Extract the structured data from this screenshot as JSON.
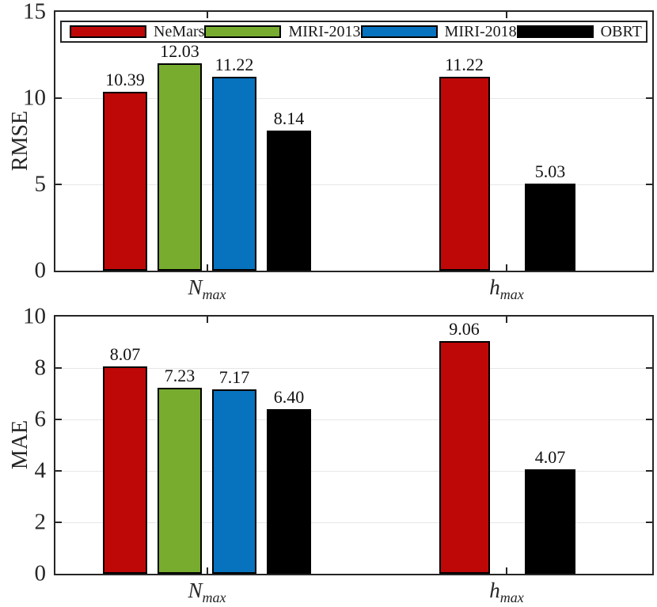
{
  "styles": {
    "axis_color": "#262626",
    "grid_color": "#e7e7e7",
    "background": "#ffffff",
    "bar_edge_color": "#000000"
  },
  "chart_data": [
    {
      "type": "bar",
      "title": "",
      "xlabel": "",
      "ylabel": "RMSE",
      "ylim": [
        0,
        15
      ],
      "yticks": [
        0,
        5,
        10,
        15
      ],
      "grid": true,
      "value_labels": true,
      "categories": [
        {
          "base": "N",
          "sub": "max"
        },
        {
          "base": "h",
          "sub": "max"
        }
      ],
      "series": [
        {
          "name": "NeMars",
          "color": "#be0808",
          "values": [
            10.39,
            11.22
          ]
        },
        {
          "name": "MIRI-2013",
          "color": "#77ac2f",
          "values": [
            12.03,
            null
          ]
        },
        {
          "name": "MIRI-2018",
          "color": "#0772bd",
          "values": [
            11.22,
            null
          ]
        },
        {
          "name": "OBRT",
          "color": "#000000",
          "values": [
            8.14,
            5.03
          ]
        }
      ],
      "legend": {
        "position": "top",
        "entries": [
          "NeMars",
          "MIRI-2013",
          "MIRI-2018",
          "OBRT"
        ]
      }
    },
    {
      "type": "bar",
      "title": "",
      "xlabel": "",
      "ylabel": "MAE",
      "ylim": [
        0,
        10
      ],
      "yticks": [
        0,
        2,
        4,
        6,
        8,
        10
      ],
      "grid": true,
      "value_labels": true,
      "categories": [
        {
          "base": "N",
          "sub": "max"
        },
        {
          "base": "h",
          "sub": "max"
        }
      ],
      "series": [
        {
          "name": "NeMars",
          "color": "#be0808",
          "values": [
            8.07,
            9.06
          ]
        },
        {
          "name": "MIRI-2013",
          "color": "#77ac2f",
          "values": [
            7.23,
            null
          ]
        },
        {
          "name": "MIRI-2018",
          "color": "#0772bd",
          "values": [
            7.17,
            null
          ]
        },
        {
          "name": "OBRT",
          "color": "#000000",
          "values": [
            6.4,
            4.07
          ]
        }
      ],
      "legend": null
    }
  ]
}
